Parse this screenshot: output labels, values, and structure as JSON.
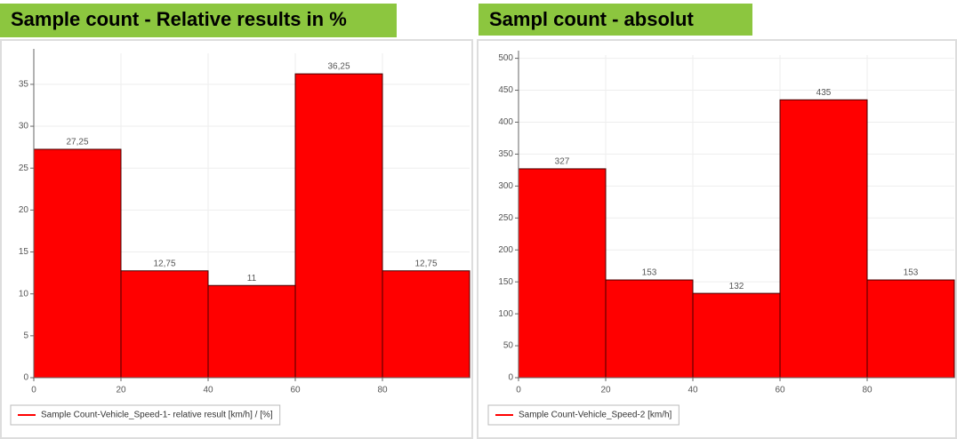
{
  "chart_data": [
    {
      "type": "histogram",
      "title": "Sample count - Relative results in %",
      "bins": [
        0,
        20,
        40,
        60,
        80,
        100
      ],
      "counts": [
        27.25,
        12.75,
        11,
        36.25,
        12.75
      ],
      "value_labels": [
        "27,25",
        "12,75",
        "11",
        "36,25",
        "12,75"
      ],
      "color": "#ff0000",
      "xlim": [
        0,
        100
      ],
      "xticks": [
        0,
        20,
        40,
        60,
        80
      ],
      "ylim": [
        0,
        38.7
      ],
      "yticks": [
        0,
        5,
        10,
        15,
        20,
        25,
        30,
        35
      ],
      "grid": true,
      "legend": "bottom-left",
      "series_name": "Sample Count-Vehicle_Speed-1- relative result [km/h] / [%]"
    },
    {
      "type": "histogram",
      "title": "Sampl count - absolut",
      "bins": [
        0,
        20,
        40,
        60,
        80,
        100
      ],
      "counts": [
        327,
        153,
        132,
        435,
        153
      ],
      "value_labels": [
        "327",
        "153",
        "132",
        "435",
        "153"
      ],
      "color": "#ff0000",
      "xlim": [
        0,
        100
      ],
      "xticks": [
        0,
        20,
        40,
        60,
        80
      ],
      "ylim": [
        0,
        505
      ],
      "yticks": [
        0,
        50,
        100,
        150,
        200,
        250,
        300,
        350,
        400,
        450,
        500
      ],
      "grid": true,
      "legend": "bottom-left",
      "series_name": "Sample Count-Vehicle_Speed-2 [km/h]"
    }
  ]
}
